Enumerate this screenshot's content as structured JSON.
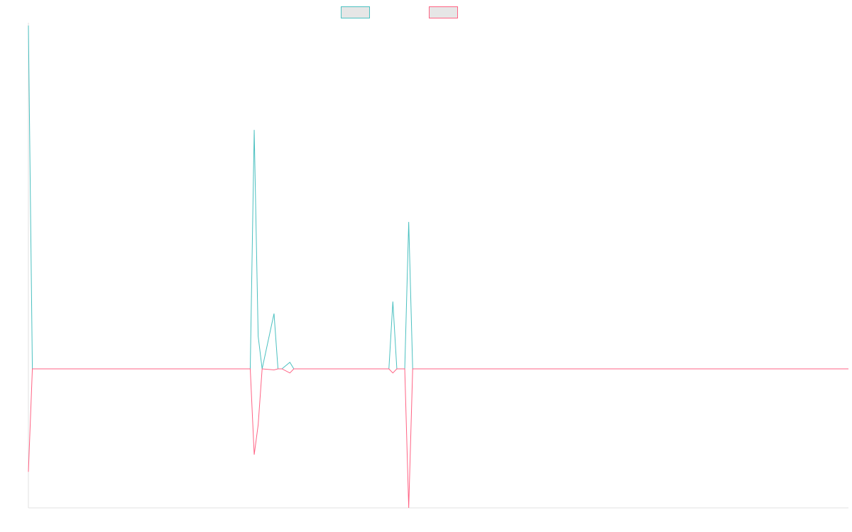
{
  "chart_data": {
    "type": "line",
    "x": [
      0,
      1,
      56,
      57,
      58,
      59,
      62,
      63,
      64,
      66,
      67,
      70,
      91,
      92,
      93,
      95,
      96,
      97,
      207
    ],
    "series": [
      {
        "color": "#4bc0c0",
        "values": [
          100,
          0,
          0,
          69.6,
          9.5,
          0,
          16.1,
          0,
          0,
          1.9,
          0,
          0,
          0,
          19.6,
          0,
          0,
          42.8,
          0,
          0
        ]
      },
      {
        "color": "#ff6384",
        "values": [
          -30,
          0,
          0,
          -25,
          -16.3,
          0,
          -0.3,
          0,
          0,
          -1.2,
          0,
          0,
          0,
          -1.2,
          0,
          0,
          -40.5,
          0,
          0
        ]
      }
    ],
    "xlim": [
      0,
      207
    ],
    "ylim": [
      -40.5,
      100
    ],
    "legend": "top"
  }
}
